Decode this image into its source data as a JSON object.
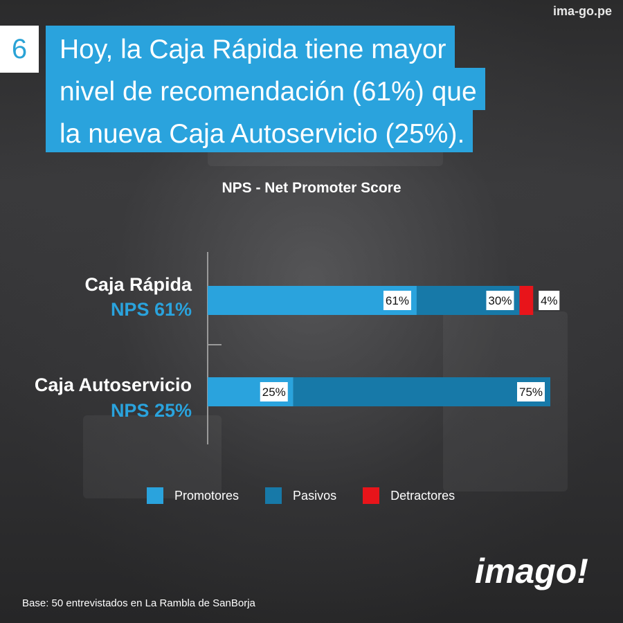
{
  "site": "ima-go.pe",
  "slide_number": "6",
  "headline": [
    "Hoy, la Caja Rápida tiene mayor",
    "nivel de recomendación (61%) que",
    "la nueva Caja Autoservicio (25%)."
  ],
  "colors": {
    "promotores": "#2aa3dd",
    "pasivos": "#1779a8",
    "detractores": "#e8141a"
  },
  "chart_data": {
    "type": "bar",
    "orientation": "horizontal",
    "stacked": true,
    "title": "NPS - Net Promoter Score",
    "categories": [
      "Caja Rápida",
      "Caja Autoservicio"
    ],
    "category_nps": [
      "NPS 61%",
      "NPS 25%"
    ],
    "xlim": [
      0,
      100
    ],
    "series": [
      {
        "name": "Promotores",
        "values": [
          61,
          25
        ],
        "labels": [
          "61%",
          "25%"
        ]
      },
      {
        "name": "Pasivos",
        "values": [
          30,
          75
        ],
        "labels": [
          "30%",
          "75%"
        ]
      },
      {
        "name": "Detractores",
        "values": [
          4,
          0
        ],
        "labels": [
          "4%",
          ""
        ]
      }
    ],
    "legend_position": "bottom"
  },
  "base_note": "Base: 50 entrevistados en La Rambla de SanBorja",
  "logo_text": "imago!"
}
